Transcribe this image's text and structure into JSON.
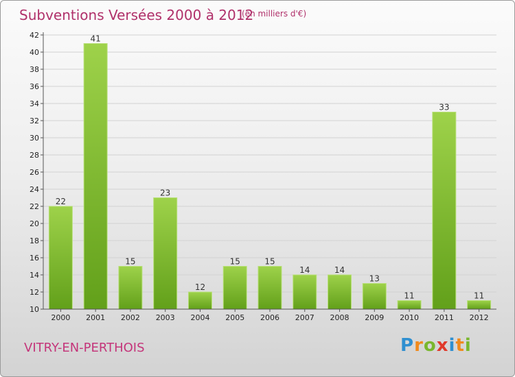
{
  "title": "Subventions Versées 2000 à 2012",
  "subtitle": "(en milliers d'€)",
  "town": "VITRY-EN-PERTHOIS",
  "logo": {
    "letters": [
      "P",
      "r",
      "o",
      "x",
      "i",
      "t",
      "i"
    ],
    "colors": [
      "#2f8fd0",
      "#f08a1c",
      "#79b72e",
      "#e03a2b",
      "#2f8fd0",
      "#f08a1c",
      "#79b72e"
    ]
  },
  "chart_data": {
    "type": "bar",
    "categories": [
      "2000",
      "2001",
      "2002",
      "2003",
      "2004",
      "2005",
      "2006",
      "2007",
      "2008",
      "2009",
      "2010",
      "2011",
      "2012"
    ],
    "values": [
      22,
      41,
      15,
      23,
      12,
      15,
      15,
      14,
      14,
      13,
      11,
      33,
      11
    ],
    "ylim": [
      10,
      42
    ],
    "yticks": [
      10,
      12,
      14,
      16,
      18,
      20,
      22,
      24,
      26,
      28,
      30,
      32,
      34,
      36,
      38,
      40,
      42
    ],
    "grid": true,
    "bar_color": "#7fbf2a"
  }
}
